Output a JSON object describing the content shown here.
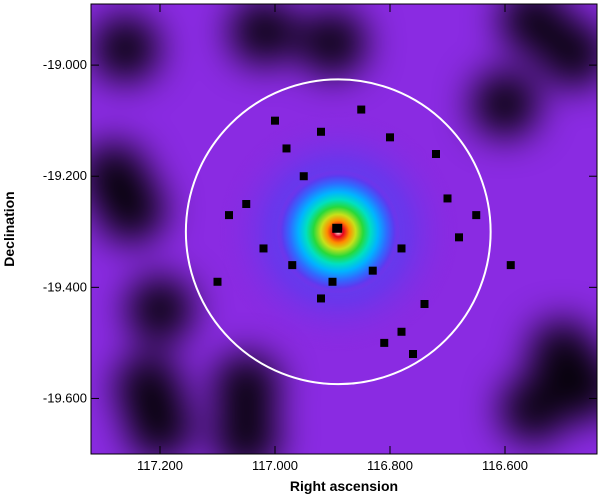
{
  "chart_data": {
    "type": "heatmap",
    "title": "",
    "xlabel": "Right ascension",
    "ylabel": "Declination",
    "xlim": [
      117.32,
      116.44
    ],
    "ylim": [
      -19.7,
      -18.89
    ],
    "x_ticks": [
      {
        "value": 117.2,
        "label": "117.200"
      },
      {
        "value": 117.0,
        "label": "117.000"
      },
      {
        "value": 116.8,
        "label": "116.800"
      },
      {
        "value": 116.6,
        "label": "116.600"
      }
    ],
    "y_ticks": [
      {
        "value": -19.0,
        "label": "-19.000"
      },
      {
        "value": -19.2,
        "label": "-19.200"
      },
      {
        "value": -19.4,
        "label": "-19.400"
      },
      {
        "value": -19.6,
        "label": "-19.600"
      }
    ],
    "colormap": [
      "#000000",
      "#3a0a55",
      "#6a1aa8",
      "#8a2be2",
      "#5a3cf0",
      "#2f6bff",
      "#00b4ff",
      "#00e0c0",
      "#27d93a",
      "#c8e01a",
      "#ff8c00",
      "#e6001e",
      "#ffffff"
    ],
    "peak": {
      "ra": 116.89,
      "dec": -19.3
    },
    "circle": {
      "ra": 116.89,
      "dec": -19.3,
      "radius_deg": 0.265,
      "color": "#ffffff"
    },
    "masked_sources": [
      {
        "ra": 117.0,
        "dec": -19.1
      },
      {
        "ra": 116.92,
        "dec": -19.12
      },
      {
        "ra": 116.85,
        "dec": -19.08
      },
      {
        "ra": 116.8,
        "dec": -19.13
      },
      {
        "ra": 116.72,
        "dec": -19.16
      },
      {
        "ra": 117.05,
        "dec": -19.25
      },
      {
        "ra": 117.08,
        "dec": -19.27
      },
      {
        "ra": 116.95,
        "dec": -19.2
      },
      {
        "ra": 116.7,
        "dec": -19.24
      },
      {
        "ra": 116.65,
        "dec": -19.27
      },
      {
        "ra": 116.68,
        "dec": -19.31
      },
      {
        "ra": 116.78,
        "dec": -19.33
      },
      {
        "ra": 117.02,
        "dec": -19.33
      },
      {
        "ra": 116.97,
        "dec": -19.36
      },
      {
        "ra": 116.83,
        "dec": -19.37
      },
      {
        "ra": 116.9,
        "dec": -19.39
      },
      {
        "ra": 116.92,
        "dec": -19.42
      },
      {
        "ra": 116.74,
        "dec": -19.43
      },
      {
        "ra": 116.78,
        "dec": -19.48
      },
      {
        "ra": 116.76,
        "dec": -19.52
      },
      {
        "ra": 117.1,
        "dec": -19.39
      },
      {
        "ra": 116.98,
        "dec": -19.15
      },
      {
        "ra": 116.59,
        "dec": -19.36
      },
      {
        "ra": 116.81,
        "dec": -19.5
      }
    ],
    "dark_regions": [
      {
        "ra": 117.26,
        "dec": -18.97
      },
      {
        "ra": 117.02,
        "dec": -18.94
      },
      {
        "ra": 116.9,
        "dec": -18.96
      },
      {
        "ra": 116.55,
        "dec": -18.92
      },
      {
        "ra": 116.48,
        "dec": -18.98
      },
      {
        "ra": 117.28,
        "dec": -19.2
      },
      {
        "ra": 117.25,
        "dec": -19.26
      },
      {
        "ra": 117.2,
        "dec": -19.44
      },
      {
        "ra": 117.22,
        "dec": -19.58
      },
      {
        "ra": 117.2,
        "dec": -19.65
      },
      {
        "ra": 116.5,
        "dec": -19.52
      },
      {
        "ra": 116.46,
        "dec": -19.58
      },
      {
        "ra": 116.55,
        "dec": -19.62
      },
      {
        "ra": 117.05,
        "dec": -19.58
      },
      {
        "ra": 117.05,
        "dec": -19.67
      },
      {
        "ra": 116.6,
        "dec": -19.07
      }
    ]
  }
}
